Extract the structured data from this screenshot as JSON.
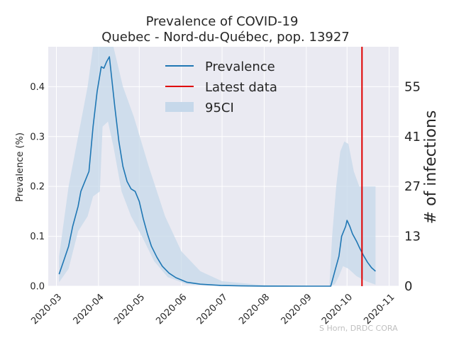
{
  "chart_data": {
    "type": "line",
    "title": [
      "Prevalence of COVID-19",
      "Quebec - Nord-du-Québec, pop. 13927"
    ],
    "ylabel": "Prevalence (%)",
    "y2label": "# of infections",
    "credit": "S Horn, DRDC CORA",
    "xlim": [
      "2020-02-24",
      "2020-11-08"
    ],
    "ylim": [
      0,
      0.48
    ],
    "x_ticks": [
      "2020-03",
      "2020-04",
      "2020-05",
      "2020-06",
      "2020-07",
      "2020-08",
      "2020-09",
      "2020-10",
      "2020-11"
    ],
    "y_ticks": [
      "0.0",
      "0.1",
      "0.2",
      "0.3",
      "0.4"
    ],
    "y2_ticks": [
      "0",
      "13",
      "27",
      "41",
      "55"
    ],
    "grid": true,
    "legend_position": "top-center",
    "colors": {
      "prevalence": "#1f77b4",
      "latest": "#e00000",
      "ci": "#c6d8ea",
      "bg": "#eaeaf2",
      "grid": "#ffffff"
    },
    "series": [
      {
        "name": "Prevalence",
        "points": [
          [
            "2020-03-03",
            0.024
          ],
          [
            "2020-03-06",
            0.048
          ],
          [
            "2020-03-10",
            0.08
          ],
          [
            "2020-03-13",
            0.12
          ],
          [
            "2020-03-17",
            0.16
          ],
          [
            "2020-03-19",
            0.19
          ],
          [
            "2020-03-22",
            0.21
          ],
          [
            "2020-03-25",
            0.23
          ],
          [
            "2020-03-28",
            0.32
          ],
          [
            "2020-03-31",
            0.39
          ],
          [
            "2020-04-03",
            0.44
          ],
          [
            "2020-04-05",
            0.437
          ],
          [
            "2020-04-07",
            0.45
          ],
          [
            "2020-04-09",
            0.46
          ],
          [
            "2020-04-11",
            0.41
          ],
          [
            "2020-04-13",
            0.36
          ],
          [
            "2020-04-16",
            0.29
          ],
          [
            "2020-04-19",
            0.24
          ],
          [
            "2020-04-22",
            0.21
          ],
          [
            "2020-04-25",
            0.195
          ],
          [
            "2020-04-28",
            0.19
          ],
          [
            "2020-05-01",
            0.17
          ],
          [
            "2020-05-04",
            0.135
          ],
          [
            "2020-05-07",
            0.105
          ],
          [
            "2020-05-10",
            0.08
          ],
          [
            "2020-05-14",
            0.058
          ],
          [
            "2020-05-18",
            0.04
          ],
          [
            "2020-05-23",
            0.026
          ],
          [
            "2020-05-28",
            0.017
          ],
          [
            "2020-06-05",
            0.008
          ],
          [
            "2020-06-15",
            0.004
          ],
          [
            "2020-06-30",
            0.0015
          ],
          [
            "2020-07-15",
            0.0005
          ],
          [
            "2020-08-01",
            0.0002
          ],
          [
            "2020-08-15",
            0.0001
          ],
          [
            "2020-09-01",
            0.0
          ],
          [
            "2020-09-19",
            0.0
          ],
          [
            "2020-09-22",
            0.03
          ],
          [
            "2020-09-25",
            0.06
          ],
          [
            "2020-09-27",
            0.1
          ],
          [
            "2020-09-30",
            0.12
          ],
          [
            "2020-10-01",
            0.132
          ],
          [
            "2020-10-03",
            0.12
          ],
          [
            "2020-10-05",
            0.105
          ],
          [
            "2020-10-08",
            0.09
          ],
          [
            "2020-10-10",
            0.078
          ],
          [
            "2020-10-13",
            0.062
          ],
          [
            "2020-10-16",
            0.048
          ],
          [
            "2020-10-19",
            0.037
          ],
          [
            "2020-10-22",
            0.03
          ]
        ]
      },
      {
        "name": "95CI",
        "upper": [
          [
            "2020-03-03",
            0.06
          ],
          [
            "2020-03-10",
            0.2
          ],
          [
            "2020-03-17",
            0.3
          ],
          [
            "2020-03-24",
            0.4
          ],
          [
            "2020-03-28",
            0.48
          ],
          [
            "2020-04-12",
            0.48
          ],
          [
            "2020-04-19",
            0.4
          ],
          [
            "2020-04-27",
            0.34
          ],
          [
            "2020-05-08",
            0.24
          ],
          [
            "2020-05-20",
            0.14
          ],
          [
            "2020-06-01",
            0.07
          ],
          [
            "2020-06-15",
            0.03
          ],
          [
            "2020-07-01",
            0.01
          ],
          [
            "2020-08-01",
            0.002
          ],
          [
            "2020-09-01",
            0.0
          ],
          [
            "2020-09-18",
            0.0
          ],
          [
            "2020-09-20",
            0.1
          ],
          [
            "2020-09-23",
            0.2
          ],
          [
            "2020-09-26",
            0.27
          ],
          [
            "2020-09-29",
            0.29
          ],
          [
            "2020-10-02",
            0.285
          ],
          [
            "2020-10-06",
            0.23
          ],
          [
            "2020-10-10",
            0.2
          ],
          [
            "2020-10-14",
            0.2
          ],
          [
            "2020-10-22",
            0.2
          ]
        ],
        "lower": [
          [
            "2020-03-03",
            0.008
          ],
          [
            "2020-03-10",
            0.035
          ],
          [
            "2020-03-17",
            0.11
          ],
          [
            "2020-03-24",
            0.14
          ],
          [
            "2020-03-28",
            0.18
          ],
          [
            "2020-04-02",
            0.19
          ],
          [
            "2020-04-04",
            0.32
          ],
          [
            "2020-04-08",
            0.33
          ],
          [
            "2020-04-12",
            0.28
          ],
          [
            "2020-04-18",
            0.19
          ],
          [
            "2020-04-25",
            0.14
          ],
          [
            "2020-05-03",
            0.1
          ],
          [
            "2020-05-12",
            0.05
          ],
          [
            "2020-05-22",
            0.018
          ],
          [
            "2020-06-05",
            0.004
          ],
          [
            "2020-07-01",
            0.0
          ],
          [
            "2020-09-18",
            0.0
          ],
          [
            "2020-09-22",
            0.004
          ],
          [
            "2020-09-25",
            0.02
          ],
          [
            "2020-09-28",
            0.04
          ],
          [
            "2020-10-02",
            0.035
          ],
          [
            "2020-10-08",
            0.02
          ],
          [
            "2020-10-15",
            0.01
          ],
          [
            "2020-10-22",
            0.003
          ]
        ]
      },
      {
        "name": "Latest data",
        "x": "2020-10-12"
      }
    ]
  }
}
